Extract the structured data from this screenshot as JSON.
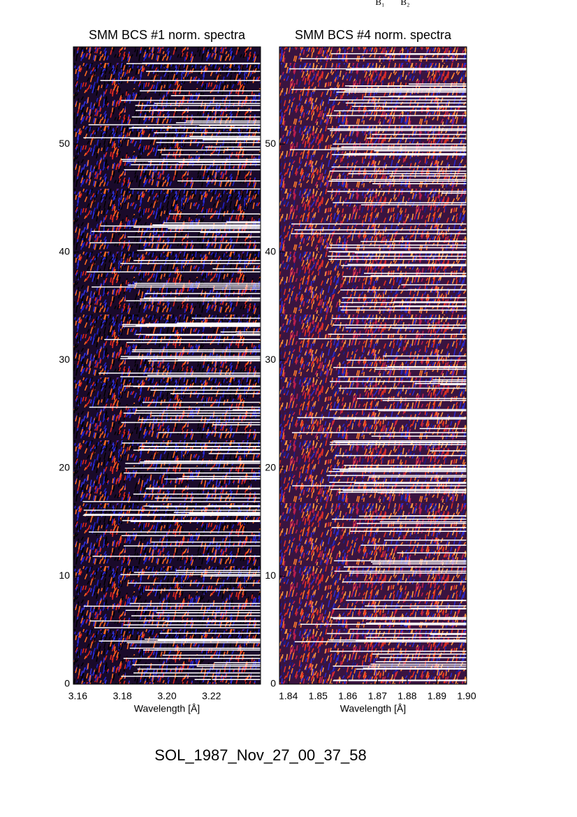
{
  "header_labels": [
    "B₁",
    "B₂"
  ],
  "footer": "SOL_1987_Nov_27_00_37_58",
  "chart_data": [
    {
      "type": "heatmap",
      "title": "SMM BCS #1 norm. spectra",
      "x_label": "Wavelength [Å]",
      "xlim": [
        3.158,
        3.242
      ],
      "xticks": [
        3.16,
        3.18,
        {
          "value": 3.2,
          "label": "3.20"
        },
        3.22
      ],
      "ylim": [
        0,
        59
      ],
      "yticks": [
        0,
        10,
        20,
        30,
        40,
        50
      ]
    },
    {
      "type": "heatmap",
      "title": "SMM BCS #4 norm. spectra",
      "x_label": "Wavelength [Å]",
      "xlim": [
        1.837,
        1.9
      ],
      "xticks": [
        1.84,
        1.85,
        1.86,
        1.87,
        1.88,
        1.89,
        {
          "value": 1.9,
          "label": "1.90"
        }
      ],
      "ylim": [
        0,
        59
      ],
      "yticks": [
        0,
        10,
        20,
        30,
        40,
        50
      ]
    }
  ]
}
